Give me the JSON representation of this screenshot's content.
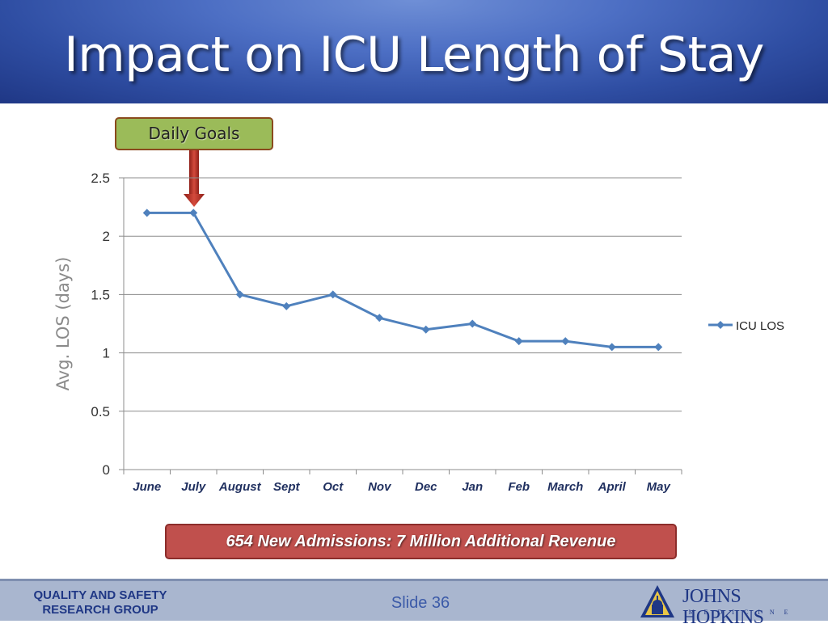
{
  "slide": {
    "title": "Impact on ICU Length of Stay",
    "callout": "Daily Goals",
    "banner": "654 New Admissions: 7 Million Additional Revenue",
    "slide_number": "Slide 36"
  },
  "footer": {
    "org_line1": "QUALITY AND SAFETY",
    "org_line2": "RESEARCH GROUP",
    "logo_text": "JOHNS HOPKINS",
    "logo_subtext": "MEDICINE"
  },
  "colors": {
    "title_band": "#2f4ea3",
    "series": "#4f81bd",
    "callout_fill": "#9bbb59",
    "arrow": "#c0392b",
    "banner_fill": "#c0504d",
    "footer": "#a9b6cf"
  },
  "icons": {
    "callout_arrow": "down-arrow-icon",
    "logo": "johns-hopkins-shield-icon"
  },
  "chart_data": {
    "type": "line",
    "categories": [
      "June",
      "July",
      "August",
      "Sept",
      "Oct",
      "Nov",
      "Dec",
      "Jan",
      "Feb",
      "March",
      "April",
      "May"
    ],
    "series": [
      {
        "name": "ICU LOS",
        "values": [
          2.2,
          2.2,
          1.5,
          1.4,
          1.5,
          1.3,
          1.2,
          1.25,
          1.1,
          1.1,
          1.05,
          1.05
        ]
      }
    ],
    "ylabel": "Avg. LOS (days)",
    "xlabel": "",
    "ylim": [
      0,
      2.5
    ],
    "yticks": [
      "0",
      "0.5",
      "1",
      "1.5",
      "2",
      "2.5"
    ],
    "grid": true,
    "legend_position": "right",
    "annotation": "Daily Goals"
  }
}
